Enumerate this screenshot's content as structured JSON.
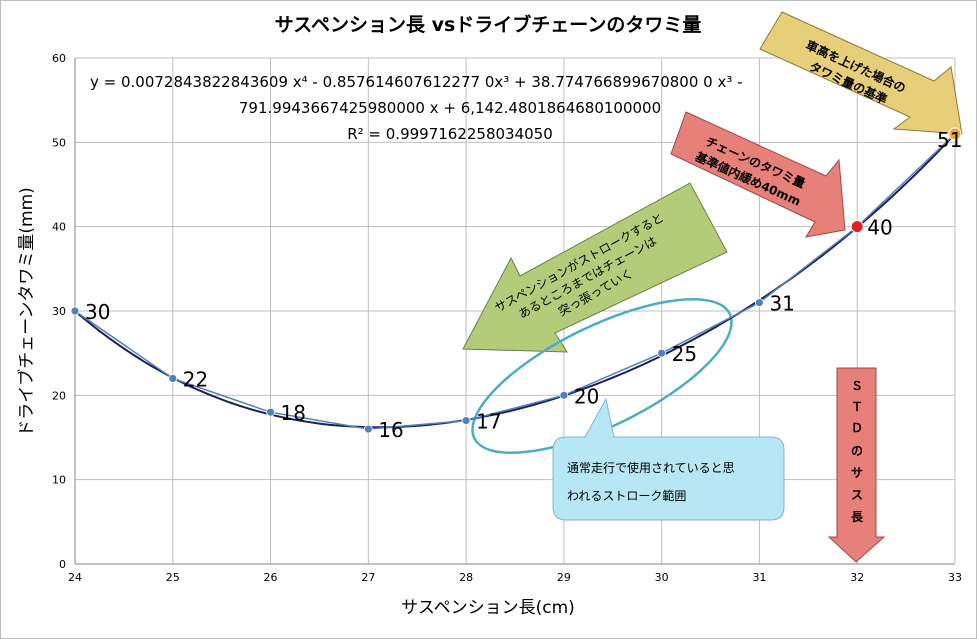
{
  "chart_data": {
    "type": "scatter",
    "title": "サスペンション長 vsドライブチェーンのタワミ量",
    "xlabel": "サスペンション長(cm)",
    "ylabel": "ドライブチェーンタワミ量(mm)",
    "xlim": [
      24,
      33
    ],
    "ylim": [
      0,
      60
    ],
    "x_ticks": [
      "24",
      "25",
      "26",
      "27",
      "28",
      "29",
      "30",
      "31",
      "32",
      "33"
    ],
    "y_ticks": [
      "0",
      "10",
      "20",
      "30",
      "40",
      "50",
      "60"
    ],
    "grid": true,
    "series": [
      {
        "x": [
          24,
          25,
          26,
          27,
          28,
          29,
          30,
          31,
          32,
          33
        ],
        "y": [
          30,
          22,
          18,
          16,
          17,
          20,
          25,
          31,
          40,
          51
        ],
        "labels": [
          "30",
          "22",
          "18",
          "16",
          "17",
          "20",
          "25",
          "31",
          "40",
          "51"
        ]
      }
    ],
    "highlight_points": [
      {
        "x": 32,
        "y": 40,
        "color": "#e0201c"
      },
      {
        "x": 33,
        "y": 51,
        "color": "#f5a623"
      }
    ],
    "trendline": {
      "type": "polynomial",
      "order": 4,
      "equation_lines": [
        "y = 0.0072843822843609 x⁴ - 0.857614607612277 0x³ + 38.774766899670800 0 x³ -",
        "791.9943667425980000 x + 6,142.4801864680100000",
        "R² = 0.9997162258034050"
      ],
      "coef": [
        0.0072843822843609,
        -0.857614607612277,
        38.7747668996708,
        -791.994366742598,
        6142.48018646801
      ]
    },
    "annotations": {
      "raise_note": [
        "車高を上げた場合の",
        "タワミ量の基準"
      ],
      "standard_note": [
        "チェーンのタワミ量",
        "基準値内緩め40mm"
      ],
      "stroke_note": [
        "サスペンションがストロークすると",
        "あるところまではチェーンは",
        "突っ張っていく"
      ],
      "range_note": [
        "通常走行で使用されていると思",
        "われるストローク範囲"
      ],
      "std_note": [
        "Ｓ",
        "Ｔ",
        "Ｄ",
        "の",
        "サ",
        "ス",
        "長"
      ]
    },
    "colors": {
      "series": "#4f81bd",
      "trend": "#1f1f5a",
      "yellow_arrow": "#e6cf78",
      "red_arrow": "#e8807a",
      "green_arrow": "#b3cc7a",
      "ellipse": "#4bacc6",
      "callout": "#b7e6f5",
      "std_arrow": "#e8807a"
    }
  }
}
